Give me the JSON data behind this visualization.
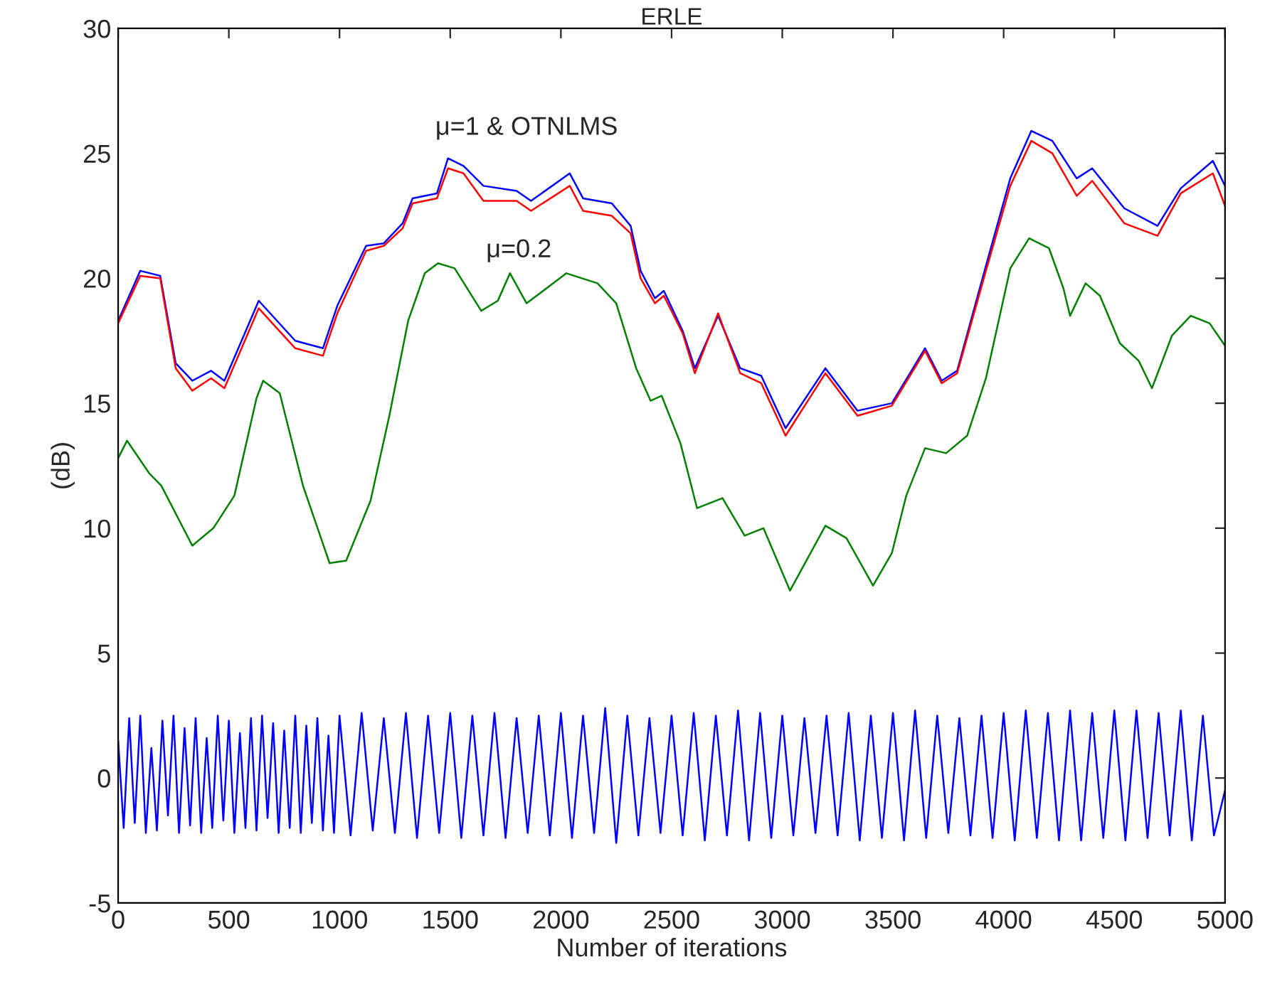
{
  "chart_data": {
    "type": "line",
    "title": "ERLE",
    "xlabel": "Number of iterations",
    "ylabel": "(dB)",
    "xlim": [
      0,
      5000
    ],
    "ylim": [
      -5,
      30
    ],
    "xticks": [
      0,
      500,
      1000,
      1500,
      2000,
      2500,
      3000,
      3500,
      4000,
      4500,
      5000
    ],
    "yticks": [
      -5,
      0,
      5,
      10,
      15,
      20,
      25,
      30
    ],
    "grid": false,
    "legend": false,
    "line_style": "solid",
    "marker": "none",
    "series": [
      {
        "color": "#0000ff",
        "x": [
          0,
          100,
          190,
          260,
          335,
          420,
          480,
          635,
          800,
          925,
          990,
          1120,
          1200,
          1285,
          1330,
          1440,
          1490,
          1560,
          1650,
          1800,
          1865,
          2040,
          2100,
          2230,
          2315,
          2360,
          2425,
          2465,
          2550,
          2605,
          2710,
          2810,
          2905,
          3015,
          3195,
          3340,
          3495,
          3645,
          3720,
          3790,
          3920,
          4030,
          4125,
          4220,
          4330,
          4400,
          4545,
          4695,
          4800,
          4945,
          5000
        ],
        "values": [
          18.3,
          20.3,
          20.1,
          16.6,
          15.9,
          16.3,
          15.9,
          19.1,
          17.5,
          17.2,
          18.9,
          21.3,
          21.4,
          22.2,
          23.2,
          23.4,
          24.8,
          24.5,
          23.7,
          23.5,
          23.1,
          24.2,
          23.2,
          23.0,
          22.1,
          20.3,
          19.2,
          19.5,
          17.9,
          16.4,
          18.5,
          16.4,
          16.1,
          14.0,
          16.4,
          14.7,
          15.0,
          17.2,
          15.9,
          16.3,
          20.5,
          24.0,
          25.9,
          25.5,
          24.0,
          24.4,
          22.8,
          22.1,
          23.6,
          24.7,
          23.7
        ]
      },
      {
        "color": "#ff0000",
        "x": [
          0,
          100,
          190,
          260,
          335,
          420,
          480,
          635,
          800,
          925,
          990,
          1120,
          1200,
          1285,
          1330,
          1440,
          1490,
          1560,
          1650,
          1800,
          1865,
          2040,
          2100,
          2230,
          2315,
          2360,
          2425,
          2465,
          2550,
          2605,
          2710,
          2810,
          2905,
          3015,
          3195,
          3340,
          3495,
          3645,
          3720,
          3790,
          3920,
          4030,
          4125,
          4220,
          4330,
          4400,
          4545,
          4695,
          4800,
          4945,
          5000
        ],
        "values": [
          18.2,
          20.1,
          20.0,
          16.4,
          15.5,
          16.0,
          15.6,
          18.8,
          17.2,
          16.9,
          18.6,
          21.1,
          21.3,
          22.0,
          23.0,
          23.2,
          24.4,
          24.2,
          23.1,
          23.1,
          22.7,
          23.7,
          22.7,
          22.5,
          21.8,
          20.0,
          19.0,
          19.3,
          17.8,
          16.2,
          18.6,
          16.2,
          15.8,
          13.7,
          16.2,
          14.5,
          14.9,
          17.1,
          15.8,
          16.2,
          20.3,
          23.7,
          25.5,
          25.0,
          23.3,
          23.9,
          22.2,
          21.7,
          23.4,
          24.2,
          22.9
        ]
      },
      {
        "color": "#008000",
        "x": [
          0,
          40,
          140,
          195,
          335,
          430,
          525,
          625,
          655,
          730,
          835,
          955,
          1030,
          1140,
          1225,
          1310,
          1385,
          1445,
          1520,
          1640,
          1715,
          1770,
          1845,
          2025,
          2165,
          2250,
          2340,
          2405,
          2455,
          2540,
          2615,
          2730,
          2830,
          2915,
          3035,
          3195,
          3290,
          3410,
          3495,
          3560,
          3645,
          3740,
          3835,
          3920,
          4030,
          4115,
          4205,
          4270,
          4300,
          4370,
          4435,
          4525,
          4610,
          4670,
          4760,
          4845,
          4930,
          5000
        ],
        "values": [
          12.8,
          13.5,
          12.2,
          11.7,
          9.3,
          10.0,
          11.3,
          15.2,
          15.9,
          15.4,
          11.7,
          8.6,
          8.7,
          11.1,
          14.5,
          18.3,
          20.2,
          20.6,
          20.4,
          18.7,
          19.1,
          20.2,
          19.0,
          20.2,
          19.8,
          19.0,
          16.4,
          15.1,
          15.3,
          13.4,
          10.8,
          11.2,
          9.7,
          10.0,
          7.5,
          10.1,
          9.6,
          7.7,
          9.0,
          11.3,
          13.2,
          13.0,
          13.7,
          16.0,
          20.4,
          21.6,
          21.2,
          19.6,
          18.5,
          19.8,
          19.3,
          17.4,
          16.7,
          15.6,
          17.7,
          18.5,
          18.2,
          17.3
        ]
      },
      {
        "color": "#0000ff",
        "x": [
          0,
          25,
          50,
          75,
          100,
          125,
          150,
          175,
          200,
          225,
          250,
          275,
          300,
          325,
          350,
          375,
          400,
          425,
          450,
          475,
          500,
          525,
          550,
          575,
          600,
          625,
          650,
          675,
          700,
          725,
          750,
          775,
          800,
          825,
          850,
          875,
          900,
          925,
          950,
          975,
          1000,
          1050,
          1100,
          1150,
          1200,
          1250,
          1300,
          1350,
          1400,
          1450,
          1500,
          1550,
          1600,
          1650,
          1700,
          1750,
          1800,
          1850,
          1900,
          1950,
          2000,
          2050,
          2100,
          2150,
          2200,
          2250,
          2300,
          2350,
          2400,
          2450,
          2500,
          2550,
          2600,
          2650,
          2700,
          2750,
          2800,
          2850,
          2900,
          2950,
          3000,
          3050,
          3100,
          3150,
          3200,
          3250,
          3300,
          3350,
          3400,
          3450,
          3500,
          3550,
          3600,
          3650,
          3700,
          3750,
          3800,
          3850,
          3900,
          3950,
          4000,
          4050,
          4100,
          4150,
          4200,
          4250,
          4300,
          4350,
          4400,
          4450,
          4500,
          4550,
          4600,
          4650,
          4700,
          4750,
          4800,
          4850,
          4900,
          4950,
          5000
        ],
        "values": [
          1.5,
          -2.0,
          2.4,
          -1.8,
          2.5,
          -2.2,
          1.2,
          -2.1,
          2.3,
          -1.5,
          2.5,
          -2.2,
          2.0,
          -1.9,
          2.4,
          -2.2,
          1.6,
          -2.0,
          2.5,
          -1.7,
          2.3,
          -2.2,
          1.8,
          -2.0,
          2.4,
          -2.1,
          2.5,
          -1.6,
          2.2,
          -2.2,
          1.9,
          -2.0,
          2.5,
          -2.2,
          2.1,
          -1.8,
          2.4,
          -2.1,
          1.7,
          -2.2,
          2.5,
          -2.3,
          2.6,
          -2.1,
          2.4,
          -2.2,
          2.6,
          -2.4,
          2.5,
          -2.2,
          2.6,
          -2.4,
          2.5,
          -2.3,
          2.6,
          -2.4,
          2.4,
          -2.2,
          2.5,
          -2.3,
          2.6,
          -2.4,
          2.5,
          -2.2,
          2.8,
          -2.6,
          2.5,
          -2.3,
          2.4,
          -2.2,
          2.5,
          -2.3,
          2.6,
          -2.5,
          2.5,
          -2.3,
          2.7,
          -2.5,
          2.6,
          -2.4,
          2.5,
          -2.3,
          2.4,
          -2.2,
          2.5,
          -2.3,
          2.6,
          -2.5,
          2.5,
          -2.4,
          2.6,
          -2.5,
          2.7,
          -2.4,
          2.5,
          -2.2,
          2.4,
          -2.3,
          2.5,
          -2.4,
          2.6,
          -2.5,
          2.7,
          -2.4,
          2.6,
          -2.5,
          2.7,
          -2.5,
          2.6,
          -2.4,
          2.7,
          -2.5,
          2.7,
          -2.4,
          2.6,
          -2.3,
          2.7,
          -2.5,
          2.5,
          -2.3,
          -0.5
        ]
      }
    ],
    "annotations": [
      "μ=1 & OTNLMS",
      "μ=0.2"
    ]
  }
}
